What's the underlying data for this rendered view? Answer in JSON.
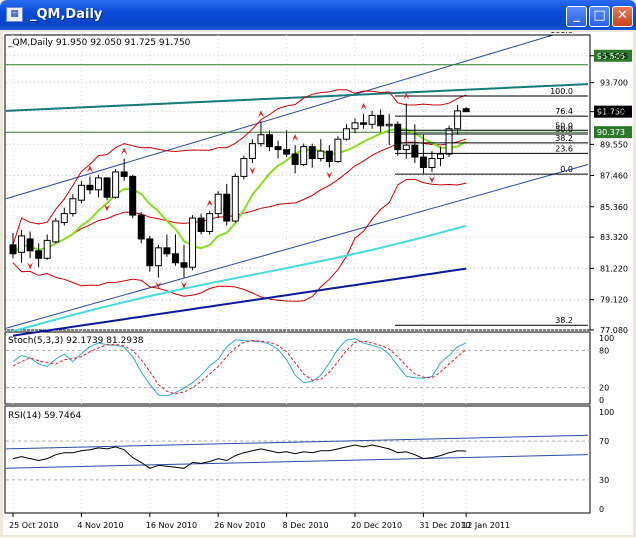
{
  "window": {
    "title": "_QM,Daily",
    "icon": "chart-app-icon"
  },
  "title_buttons": {
    "minimize": "_",
    "maximize": "□",
    "close": "✕"
  },
  "colors": {
    "candle": "#000000",
    "grid": "#000000",
    "bollinger": "#cc0000",
    "ma_green": "#88dd22",
    "ma_cyan": "#44dddd",
    "ma_navy": "#0a1a9a",
    "teal_line": "#147a7a",
    "channel": "#2a4aa8",
    "fractal": "#dd2222",
    "price_tag_bg": "#000000",
    "green_tag_bg": "#2a7a2a",
    "stoch_main": "#33aacc",
    "stoch_signal": "#dd2222",
    "rsi_line": "#000000",
    "rsi_channel": "#2a4aa8"
  },
  "chart_data": [
    {
      "type": "candlestick",
      "title": "_QM,Daily  91.950 92.050 91.725 91.750",
      "ylim": [
        77.08,
        96.9
      ],
      "y_ticks": [
        77.08,
        79.12,
        81.22,
        83.32,
        85.36,
        87.46,
        89.55,
        91.75,
        93.7,
        95.505
      ],
      "price_tag": "91.750",
      "green_tags": [
        "95.505",
        "90.373"
      ],
      "fib_levels": [
        {
          "label": "161.8",
          "value": 96.9
        },
        {
          "label": "100.0",
          "value": 92.8
        },
        {
          "label": "76.4",
          "value": 91.45
        },
        {
          "label": "50.0",
          "value": 90.5
        },
        {
          "label": "50.0",
          "value": 90.25
        },
        {
          "label": "38.2",
          "value": 89.65
        },
        {
          "label": "23.6",
          "value": 88.95
        },
        {
          "label": "0.0",
          "value": 87.55
        },
        {
          "label": "38.2",
          "value": 77.4
        }
      ],
      "x_labels": [
        "25 Oct 2010",
        "4 Nov 2010",
        "16 Nov 2010",
        "26 Nov 2010",
        "8 Dec 2010",
        "20 Dec 2010",
        "31 Dec 2010",
        "12 Jan 2011"
      ],
      "candles": [
        [
          82.8,
          83.6,
          81.9,
          82.2
        ],
        [
          82.3,
          83.8,
          81.6,
          83.4
        ],
        [
          83.2,
          83.7,
          81.9,
          82.4
        ],
        [
          82.4,
          82.9,
          81.3,
          81.9
        ],
        [
          81.9,
          83.5,
          81.8,
          83.1
        ],
        [
          83.0,
          84.6,
          82.9,
          84.4
        ],
        [
          84.3,
          85.3,
          84.1,
          84.9
        ],
        [
          84.9,
          86.2,
          84.7,
          85.9
        ],
        [
          85.8,
          87.1,
          85.6,
          86.8
        ],
        [
          86.8,
          87.4,
          86.2,
          86.5
        ],
        [
          86.5,
          87.5,
          86.0,
          87.3
        ],
        [
          87.3,
          87.3,
          85.8,
          86.0
        ],
        [
          86.0,
          87.9,
          85.9,
          87.7
        ],
        [
          87.7,
          88.6,
          87.1,
          87.4
        ],
        [
          87.4,
          87.5,
          84.6,
          84.8
        ],
        [
          84.8,
          85.0,
          82.9,
          83.2
        ],
        [
          83.2,
          83.4,
          81.0,
          81.4
        ],
        [
          81.4,
          82.8,
          80.6,
          82.6
        ],
        [
          82.6,
          83.5,
          82.0,
          82.2
        ],
        [
          82.2,
          83.5,
          81.4,
          81.6
        ],
        [
          81.6,
          82.8,
          80.6,
          81.3
        ],
        [
          81.3,
          84.8,
          81.1,
          84.6
        ],
        [
          84.6,
          84.9,
          83.5,
          83.7
        ],
        [
          83.7,
          85.1,
          83.5,
          84.9
        ],
        [
          84.9,
          86.4,
          84.6,
          86.2
        ],
        [
          86.2,
          86.9,
          84.1,
          84.4
        ],
        [
          84.4,
          87.6,
          84.3,
          87.4
        ],
        [
          87.4,
          88.8,
          87.2,
          88.6
        ],
        [
          88.6,
          89.9,
          88.3,
          89.6
        ],
        [
          89.6,
          91.1,
          89.4,
          90.2
        ],
        [
          90.2,
          90.5,
          89.1,
          89.4
        ],
        [
          89.4,
          89.8,
          88.6,
          89.2
        ],
        [
          89.2,
          90.5,
          88.7,
          88.9
        ],
        [
          88.9,
          89.5,
          87.6,
          88.2
        ],
        [
          88.2,
          89.6,
          88.1,
          89.4
        ],
        [
          89.4,
          89.6,
          88.0,
          88.6
        ],
        [
          88.6,
          89.9,
          88.4,
          89.1
        ],
        [
          89.1,
          89.5,
          88.0,
          88.4
        ],
        [
          88.4,
          90.1,
          88.3,
          89.9
        ],
        [
          89.9,
          90.9,
          89.8,
          90.6
        ],
        [
          90.6,
          91.3,
          90.3,
          91.0
        ],
        [
          91.0,
          91.6,
          90.6,
          90.9
        ],
        [
          90.9,
          91.8,
          90.6,
          91.5
        ],
        [
          91.5,
          91.9,
          90.4,
          90.8
        ],
        [
          90.8,
          91.6,
          89.5,
          90.9
        ],
        [
          90.9,
          91.1,
          88.8,
          89.2
        ],
        [
          89.2,
          92.3,
          88.6,
          89.5
        ],
        [
          89.5,
          90.9,
          88.3,
          88.7
        ],
        [
          88.7,
          90.2,
          87.6,
          88.0
        ],
        [
          88.0,
          89.1,
          87.7,
          88.6
        ],
        [
          88.6,
          89.4,
          88.1,
          88.9
        ],
        [
          88.9,
          90.8,
          88.7,
          90.6
        ],
        [
          90.6,
          92.2,
          90.2,
          91.8
        ],
        [
          91.95,
          92.05,
          91.725,
          91.75
        ]
      ]
    },
    {
      "type": "line",
      "title": "Stoch(5,3,3) 92.1739 81.2938",
      "ylim": [
        0,
        100
      ],
      "y_ticks": [
        0,
        20,
        80,
        100
      ],
      "series": [
        {
          "values": [
            62,
            72,
            68,
            58,
            54,
            66,
            74,
            62,
            75,
            86,
            92,
            89,
            88,
            85,
            70,
            45,
            25,
            8,
            7,
            12,
            19,
            28,
            40,
            55,
            66,
            86,
            97,
            96,
            95,
            94,
            90,
            82,
            65,
            40,
            28,
            30,
            40,
            60,
            82,
            97,
            99,
            92,
            88,
            84,
            74,
            55,
            38,
            36,
            35,
            38,
            60,
            72,
            86,
            92.2
          ]
        },
        {
          "values": [
            55,
            62,
            68,
            63,
            60,
            58,
            65,
            67,
            70,
            78,
            84,
            89,
            90,
            87,
            80,
            65,
            46,
            25,
            14,
            10,
            13,
            20,
            30,
            42,
            54,
            70,
            84,
            93,
            96,
            95,
            93,
            88,
            78,
            60,
            42,
            32,
            33,
            45,
            62,
            80,
            93,
            95,
            92,
            88,
            82,
            70,
            55,
            42,
            37,
            36,
            45,
            58,
            70,
            81.3
          ]
        }
      ]
    },
    {
      "type": "line",
      "title": "RSI(14) 59.7464",
      "ylim": [
        0,
        100
      ],
      "y_ticks": [
        0,
        30,
        70,
        100
      ],
      "series": [
        {
          "values": [
            52,
            54,
            52,
            50,
            52,
            56,
            58,
            58,
            60,
            61,
            63,
            62,
            64,
            61,
            53,
            48,
            42,
            45,
            44,
            43,
            42,
            48,
            47,
            49,
            52,
            50,
            55,
            58,
            60,
            62,
            60,
            58,
            59,
            57,
            59,
            58,
            60,
            60,
            62,
            64,
            66,
            64,
            66,
            64,
            62,
            58,
            59,
            56,
            52,
            53,
            55,
            58,
            60,
            59.7
          ]
        }
      ]
    }
  ]
}
